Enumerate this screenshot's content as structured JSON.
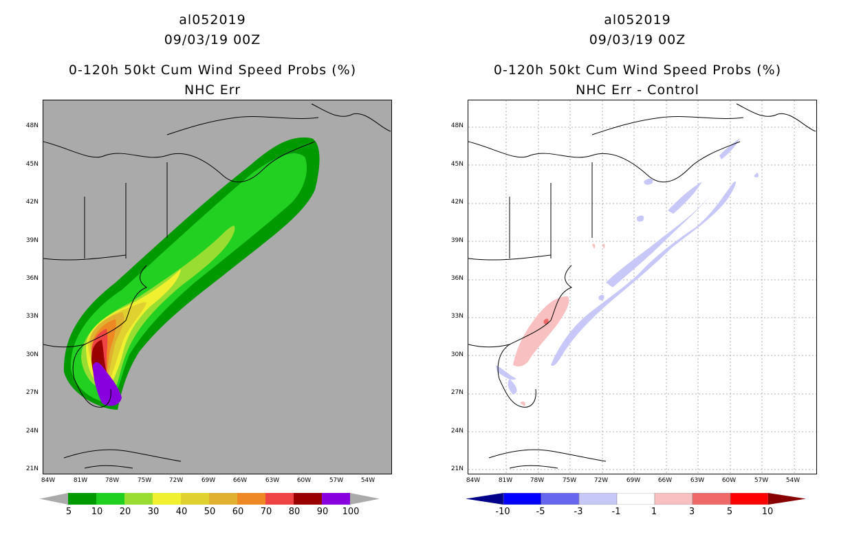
{
  "left_panel": {
    "storm_id": "al052019",
    "datetime": "09/03/19 00Z",
    "product": "0-120h 50kt Cum Wind Speed Probs (%)",
    "subtitle": "NHC Err",
    "colorbar": {
      "colors": [
        "#009900",
        "#20d020",
        "#99dd33",
        "#f0f030",
        "#e0d030",
        "#e0b030",
        "#ee8822",
        "#ee4444",
        "#990000",
        "#8800dd"
      ],
      "labels": [
        "5",
        "10",
        "20",
        "30",
        "40",
        "50",
        "60",
        "70",
        "80",
        "90",
        "100"
      ]
    }
  },
  "right_panel": {
    "storm_id": "al052019",
    "datetime": "09/03/19 00Z",
    "product": "0-120h 50kt Cum Wind Speed Probs (%)",
    "subtitle": "NHC Err - Control",
    "colorbar": {
      "colors": [
        "#000088",
        "#0000ff",
        "#6666ee",
        "#c8c8f8",
        "#ffffff",
        "#f8c0c0",
        "#f06868",
        "#ff0000",
        "#880000"
      ],
      "labels": [
        "-10",
        "-5",
        "-3",
        "-1",
        "1",
        "3",
        "5",
        "10"
      ]
    }
  },
  "axes": {
    "lat_labels": [
      "48N",
      "45N",
      "42N",
      "39N",
      "36N",
      "33N",
      "30N",
      "27N",
      "24N",
      "21N"
    ],
    "lon_labels": [
      "84W",
      "81W",
      "78W",
      "75W",
      "72W",
      "69W",
      "66W",
      "63W",
      "60W",
      "57W",
      "54W"
    ]
  }
}
